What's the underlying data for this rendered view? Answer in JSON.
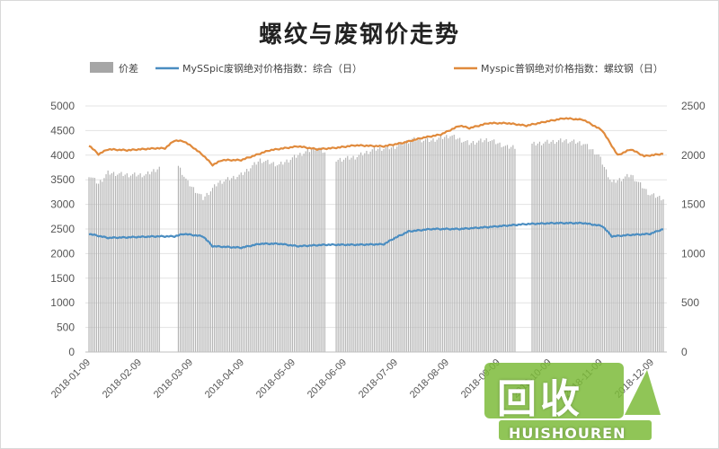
{
  "chart_data": {
    "type": "bar+line",
    "title": "螺纹与废钢价走势",
    "legend": {
      "placement": "top",
      "items": [
        {
          "label": "价差",
          "color": "#a6a6a6",
          "kind": "bar"
        },
        {
          "label": "MySSpic废钢绝对价格指数：综合（日）",
          "color": "#4a8dc1",
          "kind": "line"
        },
        {
          "label": "Myspic普钢绝对价格指数：螺纹钢（日）",
          "color": "#e08a3c",
          "kind": "line"
        }
      ]
    },
    "y_left": {
      "min": 0,
      "max": 5000,
      "ticks": [
        "0",
        "500",
        "1000",
        "1500",
        "2000",
        "2500",
        "3000",
        "3500",
        "4000",
        "4500",
        "5000"
      ]
    },
    "y_right": {
      "min": 0,
      "max": 2500,
      "ticks": [
        "0",
        "500",
        "1000",
        "1500",
        "2000",
        "2500"
      ]
    },
    "x_ticks": [
      "2018-01-09",
      "2018-02-09",
      "2018-03-09",
      "2018-04-09",
      "2018-05-09",
      "2018-06-09",
      "2018-07-09",
      "2018-08-09",
      "2018-09-09",
      "2018-10-09",
      "2018-11-09",
      "2018-12-09"
    ],
    "grid": true,
    "series": [
      {
        "name": "价差",
        "axis": "right",
        "type": "bar",
        "keyframes": [
          [
            0,
            1800
          ],
          [
            5,
            1710
          ],
          [
            10,
            1820
          ],
          [
            20,
            1800
          ],
          [
            30,
            1800
          ],
          [
            45,
            1960
          ],
          [
            52,
            1720
          ],
          [
            60,
            1560
          ],
          [
            68,
            1720
          ],
          [
            80,
            1800
          ],
          [
            90,
            1950
          ],
          [
            100,
            1900
          ],
          [
            110,
            2000
          ],
          [
            120,
            2080
          ],
          [
            130,
            1950
          ],
          [
            140,
            1980
          ],
          [
            150,
            2060
          ],
          [
            160,
            2080
          ],
          [
            170,
            2160
          ],
          [
            180,
            2150
          ],
          [
            190,
            2200
          ],
          [
            200,
            2120
          ],
          [
            210,
            2160
          ],
          [
            220,
            2080
          ],
          [
            230,
            2100
          ],
          [
            240,
            2130
          ],
          [
            250,
            2150
          ],
          [
            260,
            2120
          ],
          [
            268,
            2000
          ],
          [
            275,
            1720
          ],
          [
            285,
            1800
          ],
          [
            295,
            1600
          ],
          [
            302,
            1560
          ]
        ],
        "gaps": [
          [
            38,
            46
          ],
          [
            125,
            129
          ],
          [
            225,
            232
          ]
        ]
      },
      {
        "name": "MySSpic废钢绝对价格指数：综合（日）",
        "axis": "left",
        "type": "line",
        "keyframes": [
          [
            0,
            2400
          ],
          [
            10,
            2320
          ],
          [
            20,
            2330
          ],
          [
            35,
            2350
          ],
          [
            45,
            2350
          ],
          [
            50,
            2400
          ],
          [
            60,
            2350
          ],
          [
            65,
            2150
          ],
          [
            80,
            2120
          ],
          [
            90,
            2200
          ],
          [
            100,
            2200
          ],
          [
            110,
            2150
          ],
          [
            125,
            2180
          ],
          [
            140,
            2180
          ],
          [
            155,
            2190
          ],
          [
            160,
            2300
          ],
          [
            168,
            2450
          ],
          [
            180,
            2500
          ],
          [
            195,
            2500
          ],
          [
            210,
            2540
          ],
          [
            230,
            2600
          ],
          [
            245,
            2620
          ],
          [
            260,
            2620
          ],
          [
            270,
            2560
          ],
          [
            275,
            2350
          ],
          [
            285,
            2380
          ],
          [
            295,
            2400
          ],
          [
            302,
            2500
          ]
        ]
      },
      {
        "name": "Myspic普钢绝对价格指数：螺纹钢（日）",
        "axis": "left",
        "type": "line",
        "keyframes": [
          [
            0,
            4200
          ],
          [
            5,
            4020
          ],
          [
            10,
            4120
          ],
          [
            20,
            4100
          ],
          [
            35,
            4140
          ],
          [
            40,
            4140
          ],
          [
            45,
            4300
          ],
          [
            50,
            4280
          ],
          [
            55,
            4150
          ],
          [
            60,
            4000
          ],
          [
            65,
            3800
          ],
          [
            70,
            3900
          ],
          [
            80,
            3900
          ],
          [
            95,
            4100
          ],
          [
            110,
            4180
          ],
          [
            120,
            4120
          ],
          [
            130,
            4150
          ],
          [
            140,
            4200
          ],
          [
            155,
            4180
          ],
          [
            165,
            4250
          ],
          [
            175,
            4350
          ],
          [
            185,
            4420
          ],
          [
            195,
            4600
          ],
          [
            200,
            4550
          ],
          [
            210,
            4650
          ],
          [
            220,
            4650
          ],
          [
            230,
            4600
          ],
          [
            240,
            4680
          ],
          [
            250,
            4750
          ],
          [
            260,
            4720
          ],
          [
            270,
            4500
          ],
          [
            278,
            4000
          ],
          [
            285,
            4120
          ],
          [
            292,
            3980
          ],
          [
            302,
            4030
          ]
        ]
      }
    ]
  },
  "watermark": {
    "text": "回收",
    "subtext": "HUISHOUREN"
  }
}
